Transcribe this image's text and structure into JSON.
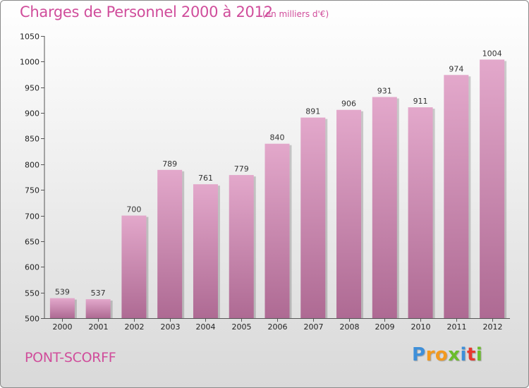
{
  "chart_data": {
    "type": "bar",
    "title": "Charges de Personnel 2000 à 2012",
    "subtitle": "(en milliers d'€)",
    "categories": [
      "2000",
      "2001",
      "2002",
      "2003",
      "2004",
      "2005",
      "2006",
      "2007",
      "2008",
      "2009",
      "2010",
      "2011",
      "2012"
    ],
    "values": [
      539,
      537,
      700,
      789,
      761,
      779,
      840,
      891,
      906,
      931,
      911,
      974,
      1004
    ],
    "xlabel": "",
    "ylabel": "",
    "ylim": [
      500,
      1050
    ],
    "yticks": [
      500,
      550,
      600,
      650,
      700,
      750,
      800,
      850,
      900,
      950,
      1000,
      1050
    ],
    "grid": false,
    "bar_color": "#d896bd"
  },
  "footer": {
    "location": "PONT-SCORFF"
  },
  "brand": {
    "name": "Proxiti",
    "letters": [
      {
        "ch": "P",
        "color": "#3e8fd9"
      },
      {
        "ch": "r",
        "color": "#f39a1e"
      },
      {
        "ch": "o",
        "color": "#f39a1e"
      },
      {
        "ch": "x",
        "color": "#6bbd2a"
      },
      {
        "ch": "i",
        "color": "#3e8fd9"
      },
      {
        "ch": "t",
        "color": "#e8382f"
      },
      {
        "ch": "i",
        "color": "#6bbd2a"
      }
    ]
  }
}
